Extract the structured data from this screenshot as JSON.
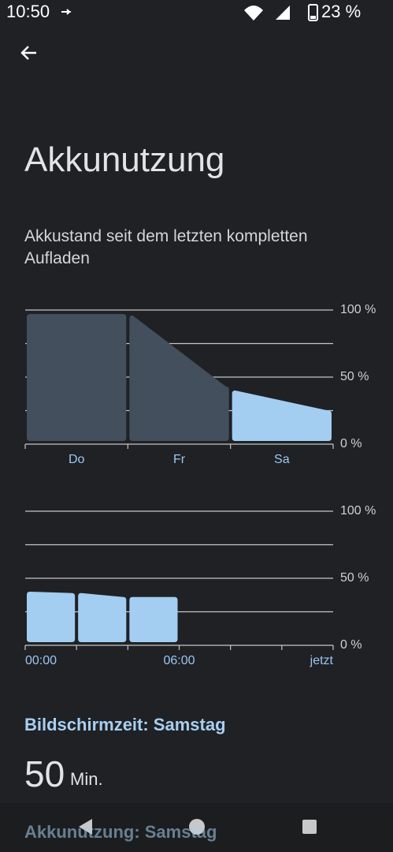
{
  "status_bar": {
    "time": "10:50",
    "battery": "23 %"
  },
  "title": "Akkunutzung",
  "subtitle": "Akkustand seit dem letzten kompletten Aufladen",
  "chart_data": [
    {
      "type": "area-columns",
      "categories": [
        "Do",
        "Fr",
        "Sa"
      ],
      "start": [
        97,
        96,
        40
      ],
      "end": [
        97,
        43,
        25
      ],
      "colors": [
        "#434f5c",
        "#434f5c",
        "#a3cdf1"
      ],
      "ylim": [
        0,
        100
      ],
      "yticks": [
        {
          "value": 0,
          "label": "0 %"
        },
        {
          "value": 25,
          "label": null
        },
        {
          "value": 50,
          "label": "50 %"
        },
        {
          "value": 75,
          "label": null
        },
        {
          "value": 100,
          "label": "100 %"
        }
      ],
      "xticks": [
        null,
        null,
        null,
        null
      ]
    },
    {
      "type": "area-columns",
      "start": [
        40,
        39,
        36,
        null,
        null,
        null
      ],
      "end": [
        39,
        36,
        36,
        null,
        null,
        null
      ],
      "colors": [
        "#a3cdf1",
        "#a3cdf1",
        "#a3cdf1",
        "#a3cdf1",
        "#a3cdf1",
        "#a3cdf1"
      ],
      "ylim": [
        0,
        100
      ],
      "yticks": [
        {
          "value": 0,
          "label": "0 %"
        },
        {
          "value": 25,
          "label": null
        },
        {
          "value": 50,
          "label": "50 %"
        },
        {
          "value": 75,
          "label": null
        },
        {
          "value": 100,
          "label": "100 %"
        }
      ],
      "xticks": [
        "00:00",
        null,
        null,
        "06:00",
        null,
        null,
        "jetzt"
      ]
    }
  ],
  "screen_time": {
    "label": "Bildschirmzeit: Samstag",
    "value": "50",
    "unit": "Min."
  },
  "usage_heading": "Akkunutzung: Samstag"
}
